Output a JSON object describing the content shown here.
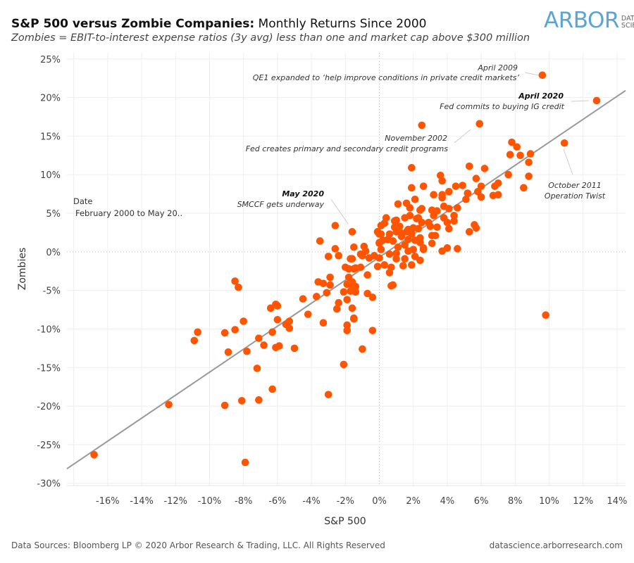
{
  "header": {
    "title_bold": "S&P 500 versus Zombie Companies:",
    "title_rest": " Monthly Returns Since 2000",
    "subtitle": "Zombies = EBIT-to-interest expense ratios (3y avg) less than one and market cap above $300 million"
  },
  "logo": {
    "main": "ARBOR",
    "sub1": "DATA",
    "sub2": "SCIENCE"
  },
  "legend": {
    "title": "Date",
    "value": "February 2000 to May 20.."
  },
  "footer": {
    "sources": "Data Sources: Bloomberg LP © 2020 Arbor Research & Trading, LLC. All Rights Reserved",
    "site": "datascience.arborresearch.com"
  },
  "colors": {
    "points": "#FF5500",
    "trend": "#999999",
    "grid": "#EEEEEE"
  },
  "annotations": [
    {
      "title": "April 2009",
      "text": "QE1 expanded to ‘help improve conditions in private credit markets’",
      "bold": false
    },
    {
      "title": "April 2020",
      "text": "Fed commits to buying IG credit",
      "bold": true
    },
    {
      "title": "November 2002",
      "text": "Fed creates primary and secondary credit programs",
      "bold": false
    },
    {
      "title": "October 2011",
      "text": "Operation Twist",
      "bold": false
    },
    {
      "title": "May 2020",
      "text": "SMCCF gets underway",
      "bold": true
    }
  ],
  "chart_data": {
    "type": "scatter",
    "xlabel": "S&P 500",
    "ylabel": "Zombies",
    "xlim": [
      -18.4,
      14.5
    ],
    "ylim": [
      -30.3,
      25.8
    ],
    "xticks": [
      -16,
      -14,
      -12,
      -10,
      -8,
      -6,
      -4,
      -2,
      0,
      2,
      4,
      6,
      8,
      10,
      12,
      14
    ],
    "yticks": [
      -30,
      -25,
      -20,
      -15,
      -10,
      -5,
      0,
      5,
      10,
      15,
      20,
      25
    ],
    "tick_format": "percent",
    "grid": true,
    "zero_lines": "dotted",
    "trend_line": {
      "slope": 1.49,
      "intercept": -0.7
    },
    "points": [
      [
        -16.8,
        -26.3
      ],
      [
        -12.4,
        -19.8
      ],
      [
        -10.9,
        -11.5
      ],
      [
        -10.7,
        -10.4
      ],
      [
        -9.1,
        -19.9
      ],
      [
        -8.9,
        -13.0
      ],
      [
        -9.1,
        -10.5
      ],
      [
        -8.5,
        -10.1
      ],
      [
        -8.5,
        -3.8
      ],
      [
        -8.3,
        -4.6
      ],
      [
        -8.0,
        -9.0
      ],
      [
        -7.8,
        -12.9
      ],
      [
        -8.1,
        -19.3
      ],
      [
        -7.9,
        -27.3
      ],
      [
        -7.2,
        -15.1
      ],
      [
        -7.1,
        -19.2
      ],
      [
        -7.1,
        -11.2
      ],
      [
        -6.8,
        -12.1
      ],
      [
        -6.3,
        -17.8
      ],
      [
        -6.4,
        -7.3
      ],
      [
        -6.1,
        -6.8
      ],
      [
        -6.0,
        -7.0
      ],
      [
        -6.3,
        -10.4
      ],
      [
        -6.0,
        -8.8
      ],
      [
        -6.1,
        -12.4
      ],
      [
        -5.9,
        -12.2
      ],
      [
        -5.5,
        -9.4
      ],
      [
        -5.3,
        -9.0
      ],
      [
        -5.3,
        -9.9
      ],
      [
        -5.0,
        -12.5
      ],
      [
        -4.5,
        -6.1
      ],
      [
        -4.2,
        -8.1
      ],
      [
        -3.7,
        -5.8
      ],
      [
        -3.6,
        -3.9
      ],
      [
        -3.5,
        1.4
      ],
      [
        -3.3,
        -9.2
      ],
      [
        -3.3,
        -4.1
      ],
      [
        -3.1,
        -5.3
      ],
      [
        -3.0,
        -18.5
      ],
      [
        -2.9,
        -3.3
      ],
      [
        -2.9,
        -4.3
      ],
      [
        -3.0,
        -0.6
      ],
      [
        -2.6,
        3.4
      ],
      [
        -2.6,
        0.4
      ],
      [
        -2.4,
        -0.5
      ],
      [
        -2.4,
        -6.6
      ],
      [
        -2.5,
        -7.4
      ],
      [
        -2.1,
        -14.6
      ],
      [
        -2.1,
        -5.2
      ],
      [
        -2.0,
        -2.0
      ],
      [
        -1.9,
        -6.2
      ],
      [
        -1.9,
        -9.5
      ],
      [
        -1.9,
        -10.2
      ],
      [
        -1.6,
        2.6
      ],
      [
        -1.5,
        0.6
      ],
      [
        -1.6,
        -7.3
      ],
      [
        -1.5,
        -8.7
      ],
      [
        -1.5,
        -8.6
      ],
      [
        -1.7,
        -0.9
      ],
      [
        -1.6,
        -0.9
      ],
      [
        -1.8,
        -2.2
      ],
      [
        -1.8,
        -3.3
      ],
      [
        -1.6,
        -3.9
      ],
      [
        -1.9,
        -4.2
      ],
      [
        -1.6,
        -4.4
      ],
      [
        -1.4,
        -4.5
      ],
      [
        -1.7,
        -5.1
      ],
      [
        -1.4,
        -5.2
      ],
      [
        -1.5,
        -2.2
      ],
      [
        -1.4,
        -2.1
      ],
      [
        -1.1,
        -2.0
      ],
      [
        -1.1,
        -0.3
      ],
      [
        -0.9,
        0.7
      ],
      [
        -0.8,
        0.1
      ],
      [
        -0.6,
        -0.8
      ],
      [
        -0.7,
        -3.0
      ],
      [
        -0.7,
        -5.4
      ],
      [
        -0.4,
        -5.9
      ],
      [
        -0.4,
        -10.2
      ],
      [
        -1.0,
        -12.6
      ],
      [
        -0.3,
        -0.5
      ],
      [
        -0.1,
        -1.9
      ],
      [
        -0.1,
        2.6
      ],
      [
        0.0,
        2.3
      ],
      [
        0.0,
        1.1
      ],
      [
        2.5,
        16.4
      ],
      [
        5.9,
        16.6
      ],
      [
        7.8,
        14.2
      ],
      [
        8.1,
        13.6
      ],
      [
        7.7,
        12.6
      ],
      [
        8.3,
        12.5
      ],
      [
        8.9,
        12.7
      ],
      [
        8.8,
        11.6
      ],
      [
        8.8,
        9.8
      ],
      [
        8.5,
        8.3
      ],
      [
        7.6,
        10.0
      ],
      [
        7.0,
        8.9
      ],
      [
        6.8,
        8.5
      ],
      [
        7.0,
        7.4
      ],
      [
        6.7,
        7.3
      ],
      [
        6.2,
        10.8
      ],
      [
        5.3,
        11.1
      ],
      [
        5.7,
        9.5
      ],
      [
        6.0,
        8.5
      ],
      [
        5.8,
        7.8
      ],
      [
        6.0,
        7.1
      ],
      [
        5.2,
        7.6
      ],
      [
        5.1,
        6.8
      ],
      [
        4.9,
        8.6
      ],
      [
        4.5,
        8.5
      ],
      [
        4.1,
        7.8
      ],
      [
        3.7,
        7.4
      ],
      [
        3.7,
        7.0
      ],
      [
        3.6,
        9.9
      ],
      [
        3.7,
        9.2
      ],
      [
        3.2,
        7.4
      ],
      [
        2.6,
        8.5
      ],
      [
        1.9,
        8.3
      ],
      [
        1.9,
        10.9
      ],
      [
        2.1,
        6.8
      ],
      [
        1.6,
        6.3
      ],
      [
        1.1,
        6.2
      ],
      [
        1.8,
        5.7
      ],
      [
        2.4,
        5.4
      ],
      [
        2.5,
        5.6
      ],
      [
        3.1,
        5.4
      ],
      [
        3.4,
        5.3
      ],
      [
        3.8,
        5.9
      ],
      [
        4.1,
        5.6
      ],
      [
        4.6,
        5.7
      ],
      [
        4.4,
        4.7
      ],
      [
        4.4,
        4.0
      ],
      [
        4.0,
        3.8
      ],
      [
        4.1,
        3.0
      ],
      [
        3.8,
        4.4
      ],
      [
        3.4,
        3.2
      ],
      [
        3.2,
        4.7
      ],
      [
        3.0,
        3.3
      ],
      [
        2.9,
        3.8
      ],
      [
        2.5,
        3.8
      ],
      [
        2.3,
        4.4
      ],
      [
        2.2,
        4.3
      ],
      [
        1.8,
        4.7
      ],
      [
        1.5,
        4.4
      ],
      [
        1.0,
        4.1
      ],
      [
        0.9,
        4.0
      ],
      [
        0.9,
        3.2
      ],
      [
        1.2,
        3.3
      ],
      [
        1.2,
        2.6
      ],
      [
        1.7,
        2.9
      ],
      [
        2.0,
        3.1
      ],
      [
        2.3,
        3.0
      ],
      [
        1.9,
        2.3
      ],
      [
        1.6,
        2.6
      ],
      [
        1.3,
        2.0
      ],
      [
        1.7,
        1.6
      ],
      [
        2.1,
        1.5
      ],
      [
        2.4,
        1.8
      ],
      [
        2.4,
        1.2
      ],
      [
        3.1,
        2.1
      ],
      [
        3.3,
        2.1
      ],
      [
        3.1,
        1.1
      ],
      [
        2.6,
        0.3
      ],
      [
        2.6,
        0.5
      ],
      [
        3.7,
        0.1
      ],
      [
        4.0,
        0.5
      ],
      [
        4.6,
        0.4
      ],
      [
        5.3,
        2.6
      ],
      [
        5.6,
        3.5
      ],
      [
        5.7,
        3.1
      ],
      [
        0.4,
        4.4
      ],
      [
        0.3,
        3.7
      ],
      [
        0.1,
        3.4
      ],
      [
        -0.1,
        2.6
      ],
      [
        0.1,
        2.3
      ],
      [
        0.6,
        2.3
      ],
      [
        1.0,
        2.6
      ],
      [
        0.0,
        1.2
      ],
      [
        0.2,
        1.5
      ],
      [
        0.5,
        1.6
      ],
      [
        0.8,
        1.4
      ],
      [
        1.1,
        0.6
      ],
      [
        1.5,
        0.9
      ],
      [
        1.7,
        0.1
      ],
      [
        2.0,
        0.3
      ],
      [
        2.1,
        -0.6
      ],
      [
        2.4,
        -1.1
      ],
      [
        1.9,
        -1.7
      ],
      [
        1.5,
        -0.9
      ],
      [
        1.4,
        -1.8
      ],
      [
        1.0,
        -0.9
      ],
      [
        1.0,
        -0.2
      ],
      [
        0.6,
        -0.3
      ],
      [
        0.1,
        0.3
      ],
      [
        0.0,
        -0.8
      ],
      [
        -1.0,
        -0.5
      ],
      [
        0.3,
        -1.7
      ],
      [
        0.7,
        -2.0
      ],
      [
        0.6,
        -2.7
      ],
      [
        0.8,
        -4.3
      ],
      [
        0.7,
        -4.4
      ],
      [
        9.6,
        22.9
      ],
      [
        12.8,
        19.6
      ],
      [
        10.9,
        14.1
      ],
      [
        9.8,
        -8.2
      ]
    ]
  }
}
